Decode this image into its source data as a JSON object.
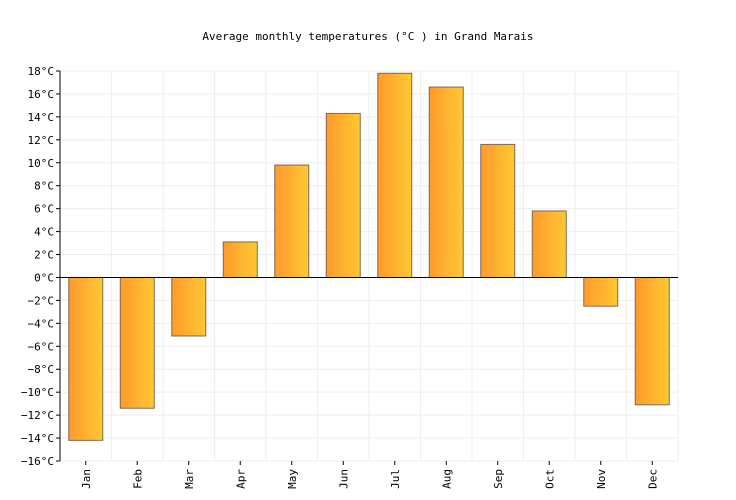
{
  "chart_data": {
    "type": "bar",
    "title": "Average monthly temperatures (°C ) in Grand Marais",
    "categories": [
      "Jan",
      "Feb",
      "Mar",
      "Apr",
      "May",
      "Jun",
      "Jul",
      "Aug",
      "Sep",
      "Oct",
      "Nov",
      "Dec"
    ],
    "values": [
      -14.2,
      -11.4,
      -5.1,
      3.1,
      9.8,
      14.3,
      17.8,
      16.6,
      11.6,
      5.8,
      -2.5,
      -11.1
    ],
    "y_ticks": [
      "18°C",
      "16°C",
      "14°C",
      "12°C",
      "10°C",
      "8°C",
      "6°C",
      "4°C",
      "2°C",
      "0°C",
      "−2°C",
      "−4°C",
      "−6°C",
      "−8°C",
      "−10°C",
      "−12°C",
      "−14°C",
      "−16°C"
    ],
    "ylim": [
      -16,
      18
    ],
    "grid": true,
    "legend": "none",
    "colors": {
      "bar_start": "#ff9a2c",
      "bar_end": "#ffc832",
      "bar_edge": "#7a6a55",
      "grid": "#eeeeee",
      "axis": "#000000"
    }
  }
}
